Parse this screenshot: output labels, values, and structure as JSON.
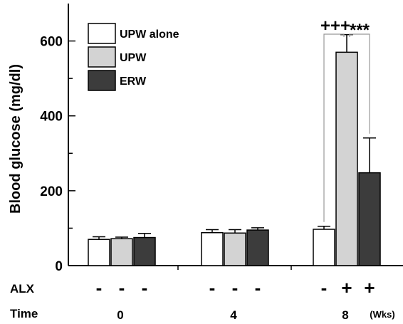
{
  "chart_data": {
    "type": "bar",
    "title": "",
    "xlabel": "",
    "ylabel": "Blood glucose (mg/dl)",
    "ylim": [
      0,
      700
    ],
    "yticks": [
      0,
      200,
      400,
      600
    ],
    "grid": false,
    "legend_position": "top-left",
    "groups": [
      "0",
      "4",
      "8"
    ],
    "series": [
      {
        "name": "UPW alone",
        "color": "#ffffff",
        "values": [
          70,
          88,
          97
        ],
        "errors": [
          7,
          8,
          8
        ]
      },
      {
        "name": "UPW",
        "color": "#d3d3d3",
        "values": [
          72,
          87,
          570
        ],
        "errors": [
          4,
          9,
          47
        ]
      },
      {
        "name": "ERW",
        "color": "#3c3c3c",
        "values": [
          75,
          95,
          248
        ],
        "errors": [
          11,
          6,
          93
        ]
      }
    ],
    "annotations": [
      {
        "text": "+++",
        "between": [
          "UPW alone",
          "UPW"
        ],
        "group": "8"
      },
      {
        "text": "***",
        "between": [
          "UPW",
          "ERW"
        ],
        "group": "8"
      }
    ]
  },
  "alx_row": {
    "label": "ALX",
    "markers": [
      [
        "-",
        "-",
        "-"
      ],
      [
        "-",
        "-",
        "-"
      ],
      [
        "-",
        "+",
        "+"
      ]
    ]
  },
  "time_row": {
    "label": "Time",
    "values": [
      "0",
      "4",
      "8"
    ],
    "unit": "(Wks)"
  }
}
